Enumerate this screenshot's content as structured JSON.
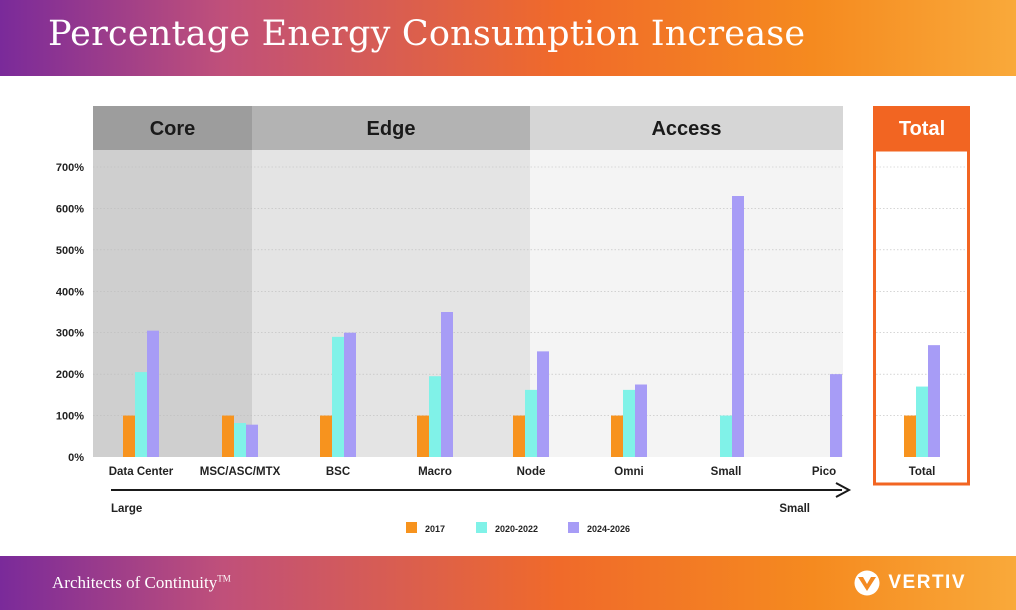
{
  "header": {
    "title": "Percentage Energy Consumption Increase"
  },
  "footer": {
    "tagline": "Architects of Continuity",
    "trademark": "TM",
    "brand": "VERTIV"
  },
  "chart_data": {
    "type": "bar",
    "categories": [
      "Data Center",
      "MSC/ASC/MTX",
      "BSC",
      "Macro",
      "Node",
      "Omni",
      "Small",
      "Pico",
      "Total"
    ],
    "series": [
      {
        "name": "2017",
        "color": "#f7931e",
        "values": [
          100,
          100,
          100,
          100,
          100,
          100,
          null,
          null,
          100
        ]
      },
      {
        "name": "2020-2022",
        "color": "#80f2e8",
        "values": [
          205,
          82,
          290,
          195,
          162,
          162,
          100,
          null,
          170
        ]
      },
      {
        "name": "2024-2026",
        "color": "#a79cf6",
        "values": [
          305,
          78,
          300,
          350,
          255,
          175,
          630,
          200,
          270
        ]
      }
    ],
    "ylim": [
      0,
      700
    ],
    "yticks": [
      "0%",
      "100%",
      "200%",
      "300%",
      "400%",
      "500%",
      "600%",
      "700%"
    ],
    "groups": [
      {
        "label": "Core",
        "categories": [
          "Data Center",
          "MSC/ASC/MTX"
        ]
      },
      {
        "label": "Edge",
        "categories": [
          "BSC",
          "Macro",
          "Node"
        ]
      },
      {
        "label": "Access",
        "categories": [
          "Omni",
          "Small",
          "Pico"
        ]
      },
      {
        "label": "Total",
        "categories": [
          "Total"
        ]
      }
    ],
    "arrow": {
      "start_label": "Large",
      "end_label": "Small"
    },
    "grid": true,
    "legend_position": "bottom"
  }
}
